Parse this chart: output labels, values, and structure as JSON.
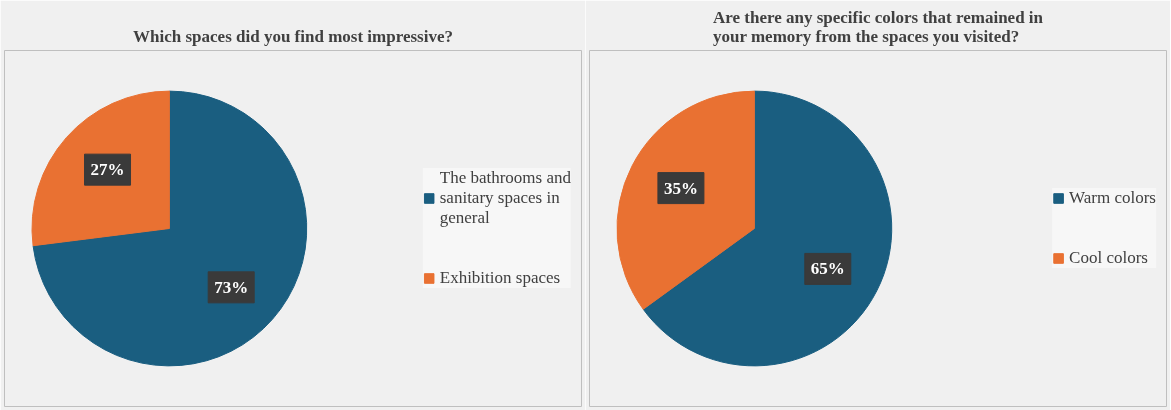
{
  "chart_data": [
    {
      "type": "pie",
      "title": "Which spaces did you find most impressive?",
      "categories": [
        "The bathrooms and sanitary spaces in general",
        "Exhibition spaces"
      ],
      "values": [
        73,
        27
      ],
      "colors": [
        "#1a5e80",
        "#e97132"
      ],
      "value_labels": [
        "73%",
        "27%"
      ],
      "legend": "right"
    },
    {
      "type": "pie",
      "title": "Are there any specific colors that remained in your memory from the spaces you visited?",
      "categories": [
        "Warm colors",
        "Cool colors"
      ],
      "values": [
        65,
        35
      ],
      "colors": [
        "#1a5e80",
        "#e97132"
      ],
      "value_labels": [
        "65%",
        "35%"
      ],
      "legend": "right"
    }
  ]
}
